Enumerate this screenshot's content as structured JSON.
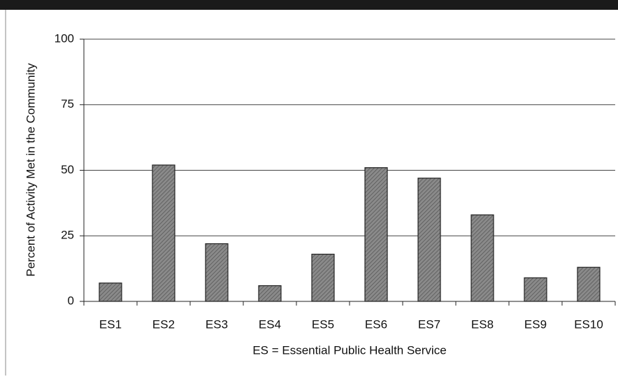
{
  "chart_data": {
    "type": "bar",
    "x_label": "ES = Essential Public Health Service",
    "y_label": "Percent of Activity Met in the Community",
    "categories": [
      "ES1",
      "ES2",
      "ES3",
      "ES4",
      "ES5",
      "ES6",
      "ES7",
      "ES8",
      "ES9",
      "ES10"
    ],
    "values": [
      7,
      52,
      22,
      6,
      18,
      51,
      47,
      33,
      9,
      13
    ],
    "color": "#8a8a8a",
    "ylim": [
      0,
      100
    ],
    "yticks": [
      0,
      25,
      50,
      75,
      100
    ],
    "grid": true
  }
}
